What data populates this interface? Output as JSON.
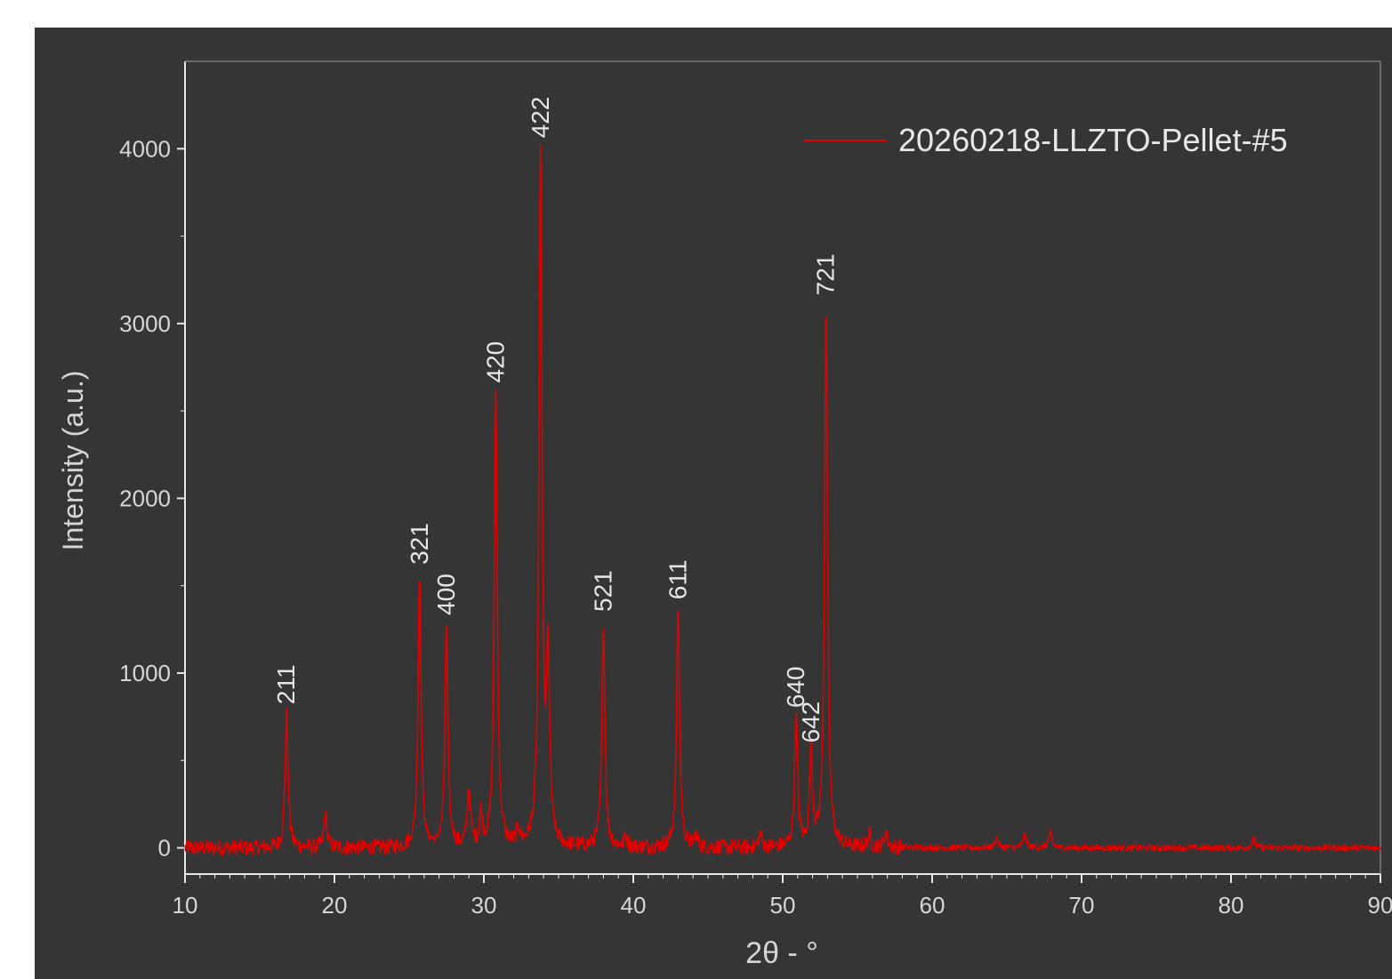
{
  "chart_data": {
    "type": "line",
    "xlabel": "2θ - °",
    "ylabel": "Intensity (a.u.)",
    "xlim": [
      10,
      90
    ],
    "ylim": [
      -150,
      4500
    ],
    "x_ticks": [
      10,
      20,
      30,
      40,
      50,
      60,
      70,
      80,
      90
    ],
    "y_ticks": [
      0,
      1000,
      2000,
      3000,
      4000
    ],
    "grid": false,
    "legend_position": "top-right",
    "series": [
      {
        "name": "20260218-LLZTO-Pellet-#5",
        "color": "#e00000",
        "background": "#353535",
        "peaks": [
          {
            "x": 16.8,
            "y": 760,
            "label": "211"
          },
          {
            "x": 19.4,
            "y": 190,
            "label": ""
          },
          {
            "x": 25.7,
            "y": 1560,
            "label": "321"
          },
          {
            "x": 27.5,
            "y": 1270,
            "label": "400"
          },
          {
            "x": 29.0,
            "y": 330,
            "label": ""
          },
          {
            "x": 29.8,
            "y": 180,
            "label": ""
          },
          {
            "x": 30.8,
            "y": 2600,
            "label": "420"
          },
          {
            "x": 32.3,
            "y": 90,
            "label": ""
          },
          {
            "x": 33.8,
            "y": 4000,
            "label": "422"
          },
          {
            "x": 34.3,
            "y": 1050,
            "label": ""
          },
          {
            "x": 38.0,
            "y": 1290,
            "label": "521"
          },
          {
            "x": 39.5,
            "y": 60,
            "label": ""
          },
          {
            "x": 43.0,
            "y": 1360,
            "label": "611"
          },
          {
            "x": 44.2,
            "y": 70,
            "label": ""
          },
          {
            "x": 48.5,
            "y": 80,
            "label": ""
          },
          {
            "x": 50.9,
            "y": 740,
            "label": "640"
          },
          {
            "x": 51.9,
            "y": 540,
            "label": "642"
          },
          {
            "x": 52.9,
            "y": 3100,
            "label": "721"
          },
          {
            "x": 55.8,
            "y": 70,
            "label": ""
          },
          {
            "x": 56.9,
            "y": 90,
            "label": ""
          },
          {
            "x": 64.3,
            "y": 60,
            "label": ""
          },
          {
            "x": 66.2,
            "y": 80,
            "label": ""
          },
          {
            "x": 67.9,
            "y": 90,
            "label": ""
          },
          {
            "x": 81.5,
            "y": 50,
            "label": ""
          }
        ]
      }
    ]
  }
}
